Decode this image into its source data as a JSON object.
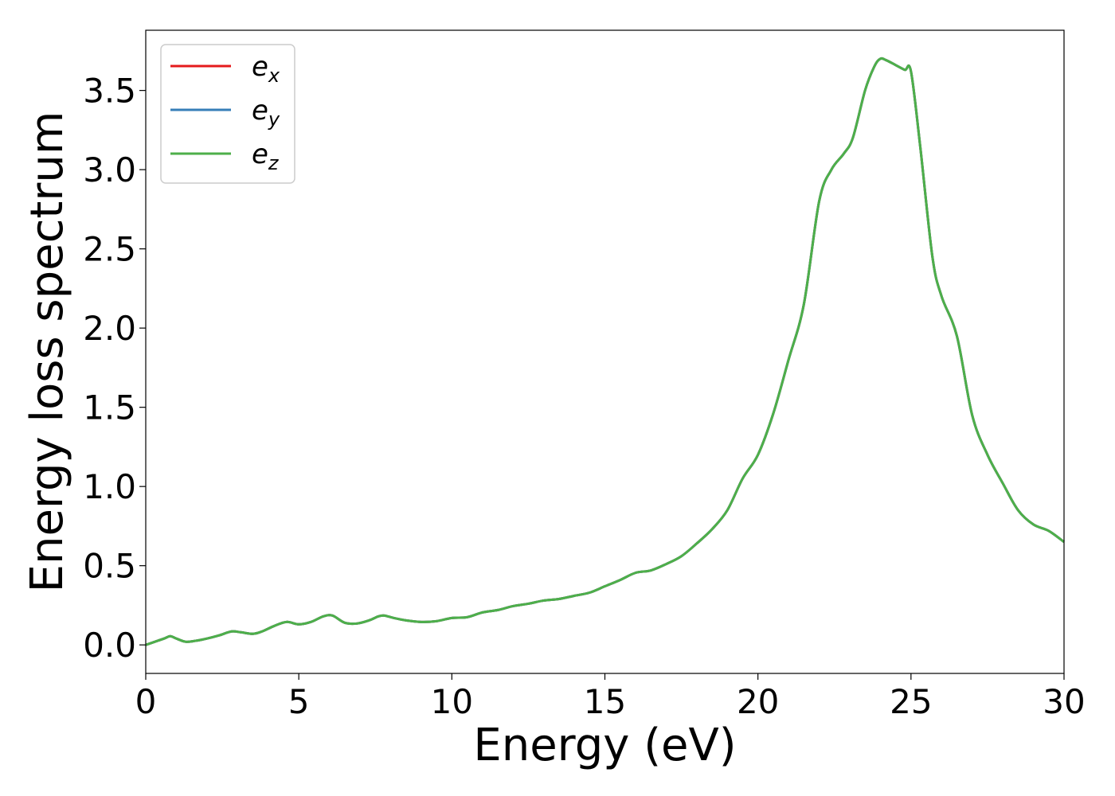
{
  "chart_data": {
    "type": "line",
    "title": "",
    "xlabel": "Energy (eV)",
    "ylabel": "Energy loss spectrum",
    "xlim": [
      0,
      30
    ],
    "ylim": [
      -0.18,
      3.88
    ],
    "xticks": [
      "0",
      "5",
      "10",
      "15",
      "20",
      "25",
      "30"
    ],
    "yticks": [
      "0.0",
      "0.5",
      "1.0",
      "1.5",
      "2.0",
      "2.5",
      "3.0",
      "3.5"
    ],
    "grid": false,
    "legend_position": "upper-left",
    "x": [
      0,
      0.3,
      0.6,
      0.8,
      1.0,
      1.3,
      1.6,
      2.0,
      2.4,
      2.8,
      3.1,
      3.5,
      3.8,
      4.2,
      4.6,
      5.0,
      5.4,
      5.8,
      6.1,
      6.5,
      6.9,
      7.3,
      7.6,
      7.8,
      8.1,
      8.5,
      9.0,
      9.5,
      10.0,
      10.5,
      11.0,
      11.5,
      12.0,
      12.5,
      13.0,
      13.5,
      14.0,
      14.5,
      15.0,
      15.5,
      16.0,
      16.5,
      17.0,
      17.5,
      18.0,
      18.5,
      19.0,
      19.5,
      20.0,
      20.5,
      21.0,
      21.5,
      22.0,
      22.4,
      22.8,
      23.1,
      23.5,
      23.8,
      24.0,
      24.2,
      24.5,
      24.8,
      25.0,
      25.3,
      25.7,
      26.0,
      26.5,
      27.0,
      27.5,
      28.0,
      28.5,
      29.0,
      29.5,
      30.0
    ],
    "series": [
      {
        "name": "e_x",
        "label_base": "e",
        "label_sub": "x",
        "color": "#e41a1c",
        "values": [
          0.0,
          0.02,
          0.04,
          0.055,
          0.04,
          0.02,
          0.025,
          0.04,
          0.06,
          0.085,
          0.08,
          0.07,
          0.085,
          0.12,
          0.145,
          0.13,
          0.145,
          0.18,
          0.185,
          0.14,
          0.135,
          0.155,
          0.18,
          0.185,
          0.17,
          0.155,
          0.145,
          0.15,
          0.17,
          0.175,
          0.205,
          0.22,
          0.245,
          0.26,
          0.28,
          0.29,
          0.31,
          0.33,
          0.37,
          0.41,
          0.455,
          0.47,
          0.51,
          0.56,
          0.64,
          0.73,
          0.85,
          1.05,
          1.2,
          1.46,
          1.8,
          2.15,
          2.8,
          3.0,
          3.1,
          3.2,
          3.5,
          3.65,
          3.7,
          3.69,
          3.66,
          3.63,
          3.62,
          3.15,
          2.45,
          2.2,
          1.95,
          1.45,
          1.2,
          1.02,
          0.85,
          0.76,
          0.72,
          0.65
        ]
      },
      {
        "name": "e_y",
        "label_base": "e",
        "label_sub": "y",
        "color": "#377eb8",
        "values": [
          0.0,
          0.02,
          0.04,
          0.055,
          0.04,
          0.02,
          0.025,
          0.04,
          0.06,
          0.085,
          0.08,
          0.07,
          0.085,
          0.12,
          0.145,
          0.13,
          0.145,
          0.18,
          0.185,
          0.14,
          0.135,
          0.155,
          0.18,
          0.185,
          0.17,
          0.155,
          0.145,
          0.15,
          0.17,
          0.175,
          0.205,
          0.22,
          0.245,
          0.26,
          0.28,
          0.29,
          0.31,
          0.33,
          0.37,
          0.41,
          0.455,
          0.47,
          0.51,
          0.56,
          0.64,
          0.73,
          0.85,
          1.05,
          1.2,
          1.46,
          1.8,
          2.15,
          2.8,
          3.0,
          3.1,
          3.2,
          3.5,
          3.65,
          3.7,
          3.69,
          3.66,
          3.63,
          3.62,
          3.15,
          2.45,
          2.2,
          1.95,
          1.45,
          1.2,
          1.02,
          0.85,
          0.76,
          0.72,
          0.65
        ]
      },
      {
        "name": "e_z",
        "label_base": "e",
        "label_sub": "z",
        "color": "#4daf4a",
        "values": [
          0.0,
          0.02,
          0.04,
          0.055,
          0.04,
          0.02,
          0.025,
          0.04,
          0.06,
          0.085,
          0.08,
          0.07,
          0.085,
          0.12,
          0.145,
          0.13,
          0.145,
          0.18,
          0.185,
          0.14,
          0.135,
          0.155,
          0.18,
          0.185,
          0.17,
          0.155,
          0.145,
          0.15,
          0.17,
          0.175,
          0.205,
          0.22,
          0.245,
          0.26,
          0.28,
          0.29,
          0.31,
          0.33,
          0.37,
          0.41,
          0.455,
          0.47,
          0.51,
          0.56,
          0.64,
          0.73,
          0.85,
          1.05,
          1.2,
          1.46,
          1.8,
          2.15,
          2.8,
          3.0,
          3.1,
          3.2,
          3.5,
          3.65,
          3.7,
          3.69,
          3.66,
          3.63,
          3.62,
          3.15,
          2.45,
          2.2,
          1.95,
          1.45,
          1.2,
          1.02,
          0.85,
          0.76,
          0.72,
          0.65
        ]
      }
    ]
  }
}
